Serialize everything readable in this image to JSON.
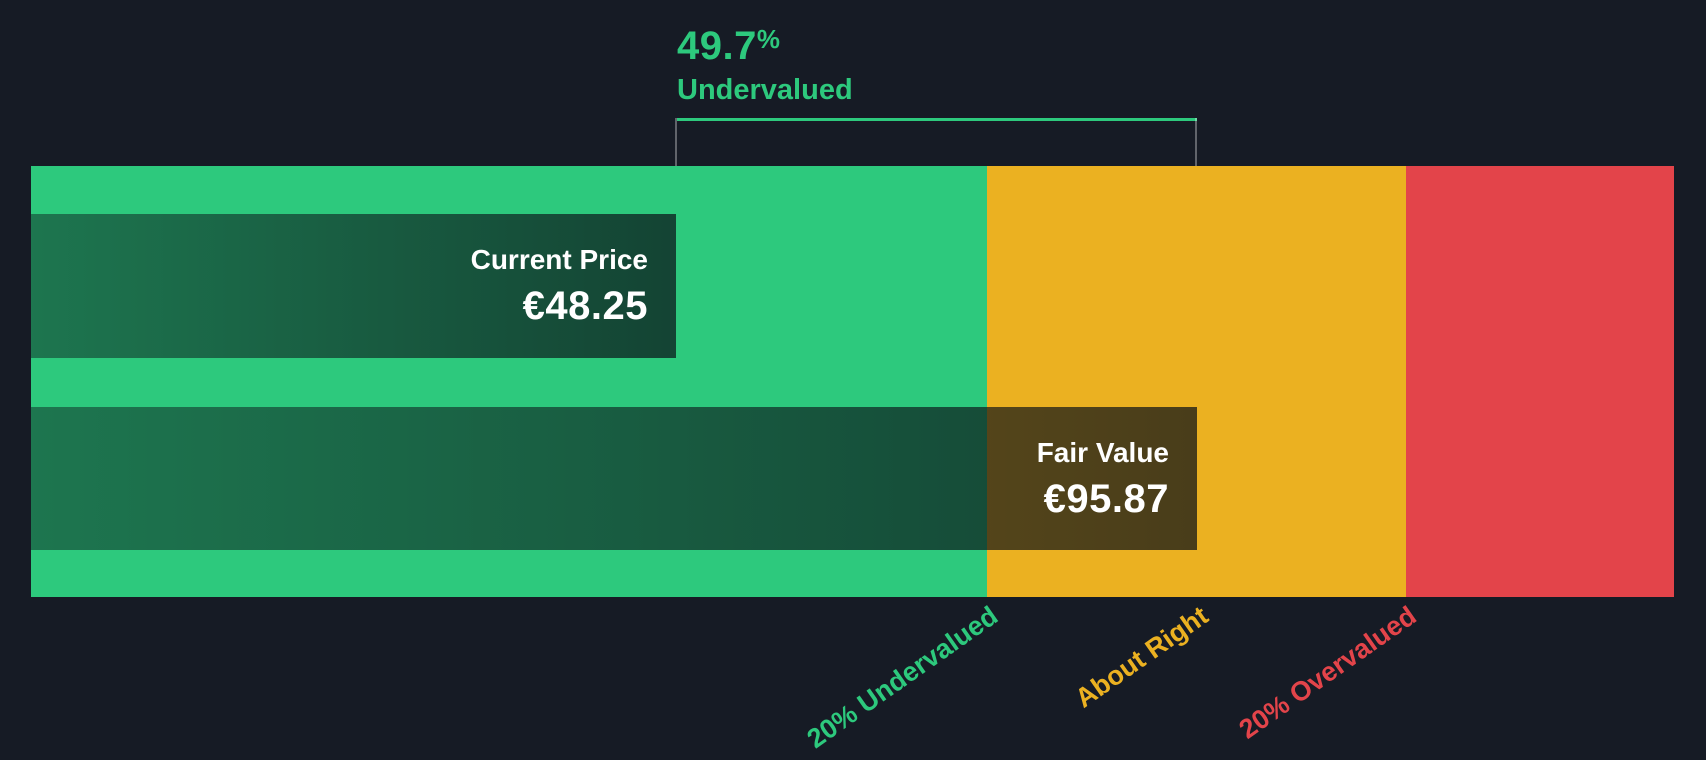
{
  "colors": {
    "bg": "#161B25",
    "green": "#2DC97D",
    "yellow": "#EBB121",
    "red": "#E3444A",
    "white": "#FFFFFF"
  },
  "header": {
    "percent_value": "49.7",
    "percent_suffix": "%",
    "label": "Undervalued"
  },
  "current_price": {
    "label": "Current Price",
    "value": "€48.25"
  },
  "fair_value": {
    "label": "Fair Value",
    "value": "€95.87"
  },
  "axis_labels": {
    "undervalued": "20% Undervalued",
    "about_right": "About Right",
    "overvalued": "20% Overvalued"
  },
  "chart_data": {
    "type": "bar",
    "subtype": "valuation-gauge",
    "orientation": "horizontal",
    "title": "49.7% Undervalued",
    "series": [
      {
        "name": "Current Price",
        "value": 48.25,
        "currency": "EUR",
        "display": "€48.25"
      },
      {
        "name": "Fair Value",
        "value": 95.87,
        "currency": "EUR",
        "display": "€95.87"
      }
    ],
    "discount_pct": 49.7,
    "zones": [
      {
        "label": "20% Undervalued",
        "fair_value_ratio_range": [
          0,
          0.8
        ],
        "color": "#2DC97D"
      },
      {
        "label": "About Right",
        "fair_value_ratio_range": [
          0.8,
          1.2
        ],
        "color": "#EBB121"
      },
      {
        "label": "20% Overvalued",
        "fair_value_ratio_range": [
          1.2,
          1.43
        ],
        "color": "#E3444A"
      }
    ],
    "legend_position": "none",
    "grid": false
  }
}
